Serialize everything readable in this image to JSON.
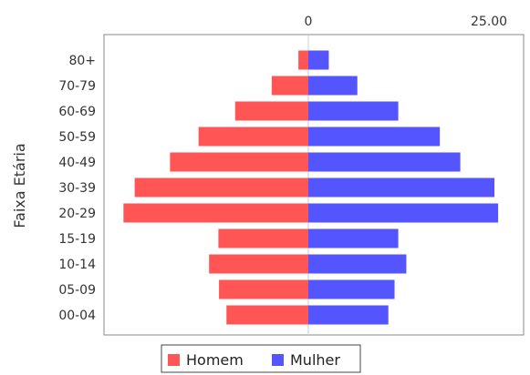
{
  "chart_data": {
    "type": "bar",
    "orientation": "horizontal",
    "ylabel": "Faixa Etária",
    "categories": [
      "80+",
      "70-79",
      "60-69",
      "50-59",
      "40-49",
      "30-39",
      "20-29",
      "15-19",
      "10-14",
      "05-09",
      "00-04"
    ],
    "x_ticks": [
      "0",
      "25.00"
    ],
    "xlim": [
      -33,
      35
    ],
    "grid": false,
    "legend_position": "bottom",
    "series": [
      {
        "name": "Homem",
        "color": "#ff5555",
        "values": [
          1.6,
          5.9,
          11.8,
          17.7,
          22.3,
          28.0,
          29.8,
          14.5,
          16.0,
          14.4,
          13.2
        ]
      },
      {
        "name": "Mulher",
        "color": "#5555ff",
        "values": [
          3.3,
          7.9,
          14.5,
          21.2,
          24.5,
          30.0,
          30.6,
          14.5,
          15.8,
          13.9,
          12.9
        ]
      }
    ]
  }
}
